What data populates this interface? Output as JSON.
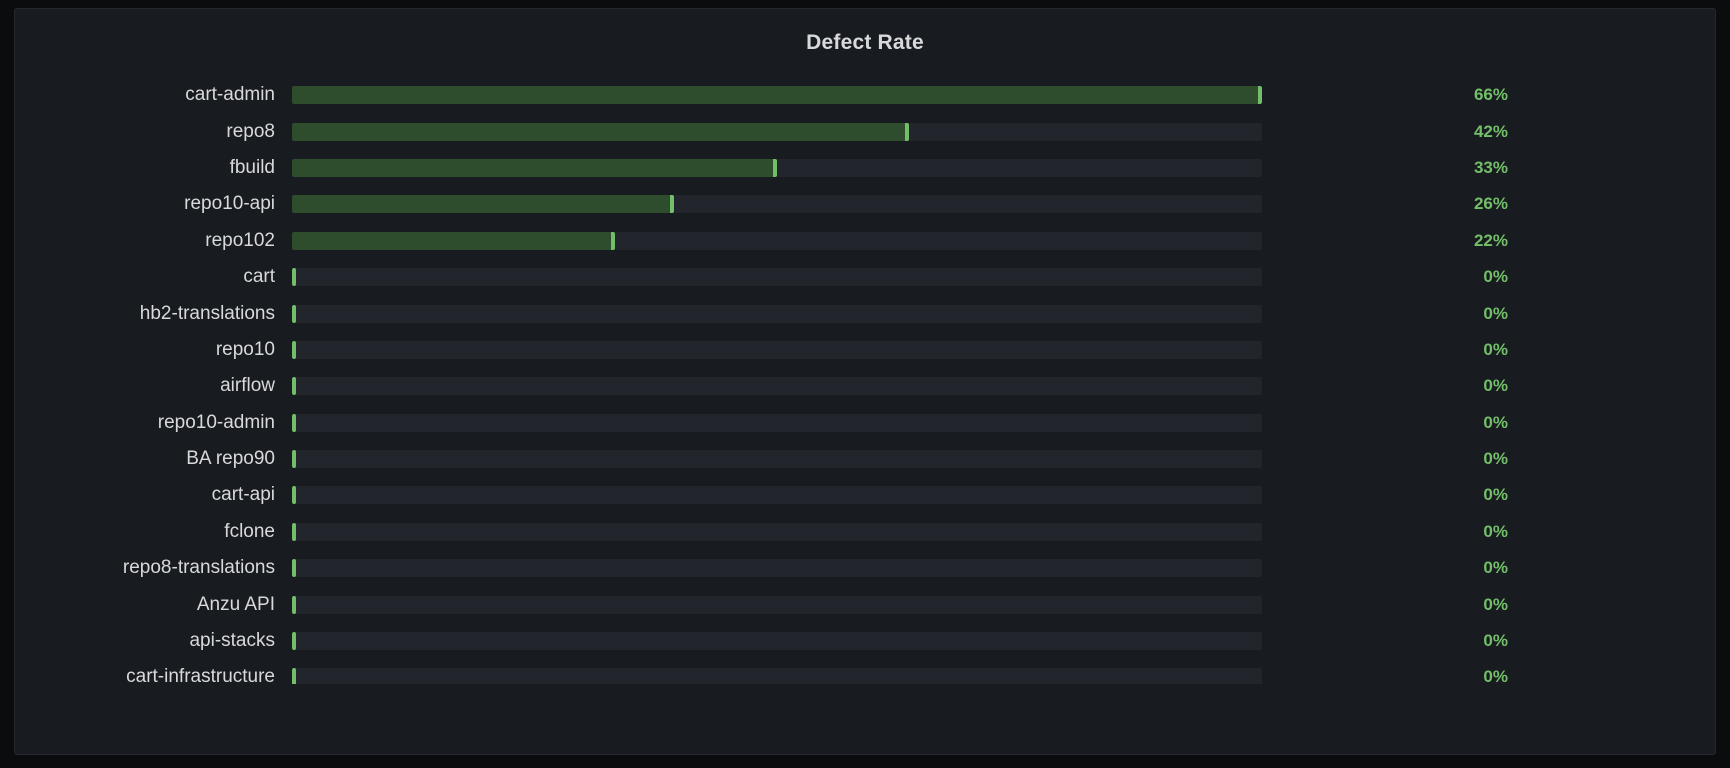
{
  "panel": {
    "title": "Defect Rate"
  },
  "colors": {
    "page_bg": "#0b0c0e",
    "panel_bg": "#181b1f",
    "panel_border": "#25282d",
    "title_text": "#d8d9da",
    "label_text": "#d8d9da",
    "track": "#22252b",
    "bar_fill": "#2e4d2c",
    "accent_green": "#73bf69",
    "value_text": "#73bf69"
  },
  "chart_data": {
    "type": "bar",
    "orientation": "horizontal",
    "title": "Defect Rate",
    "unit": "%",
    "scale_max": 66,
    "legend": "none",
    "grid": "off",
    "categories": [
      "cart-admin",
      "repo8",
      "fbuild",
      "repo10-api",
      "repo102",
      "cart",
      "hb2-translations",
      "repo10",
      "airflow",
      "repo10-admin",
      "BA repo90",
      "cart-api",
      "fclone",
      "repo8-translations",
      "Anzu API",
      "api-stacks",
      "cart-infrastructure"
    ],
    "values": [
      66,
      42,
      33,
      26,
      22,
      0,
      0,
      0,
      0,
      0,
      0,
      0,
      0,
      0,
      0,
      0,
      0
    ],
    "value_labels": [
      "66%",
      "42%",
      "33%",
      "26%",
      "22%",
      "0%",
      "0%",
      "0%",
      "0%",
      "0%",
      "0%",
      "0%",
      "0%",
      "0%",
      "0%",
      "0%",
      "0%"
    ]
  }
}
